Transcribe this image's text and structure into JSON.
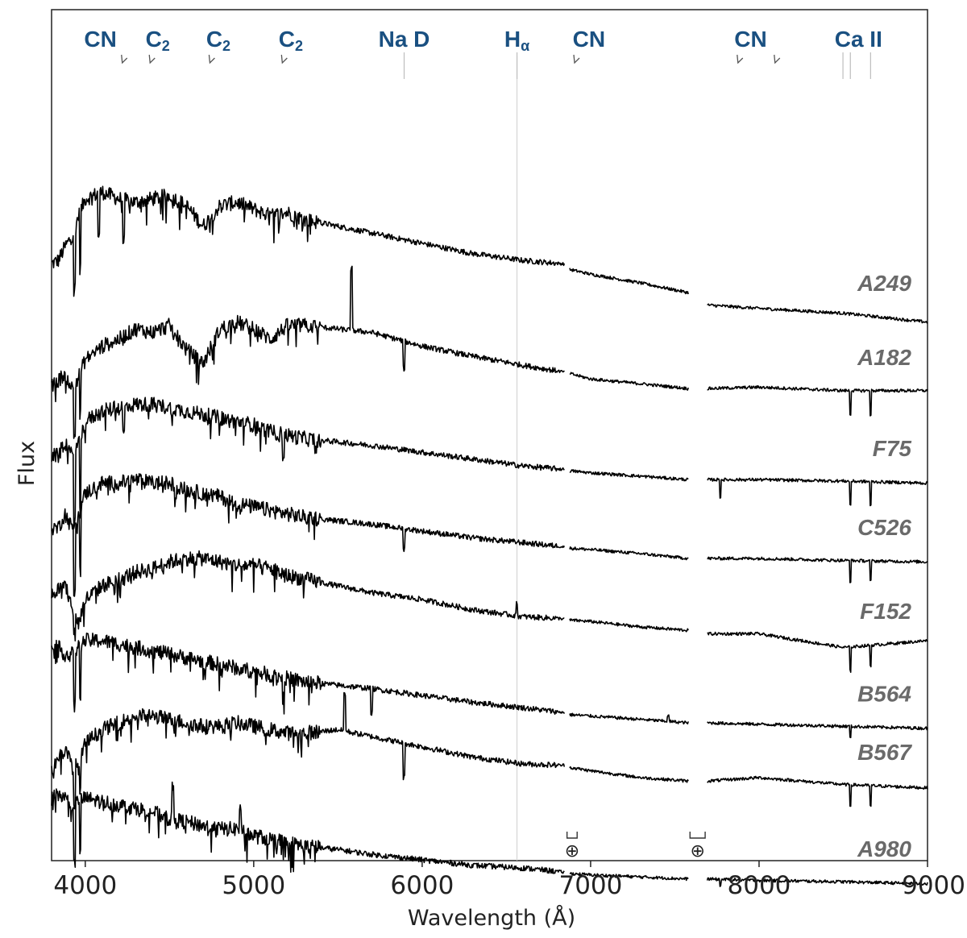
{
  "chart_data": {
    "type": "line",
    "title": "",
    "xlabel": "Wavelength (Å)",
    "ylabel": "Flux",
    "xlim": [
      3800,
      9000
    ],
    "x_ticks": [
      4000,
      5000,
      6000,
      7000,
      8000,
      9000
    ],
    "y_ticks_shown": false,
    "grid": false,
    "gaps": [
      [
        6845,
        6875
      ],
      [
        7580,
        7690
      ]
    ],
    "halpha_marker": 6563,
    "telluric_symbol": "⊕",
    "telluric_bands": [
      [
        6860,
        6920
      ],
      [
        7590,
        7680
      ]
    ],
    "line_labels": [
      {
        "text": "CN",
        "x": 4090,
        "kind": "tick",
        "ticks": [
          4215
        ]
      },
      {
        "text": "C",
        "sub": "2",
        "x": 4430,
        "kind": "tick",
        "ticks": [
          4380
        ]
      },
      {
        "text": "C",
        "sub": "2",
        "x": 4790,
        "kind": "tick",
        "ticks": [
          4735
        ]
      },
      {
        "text": "C",
        "sub": "2",
        "x": 5220,
        "kind": "tick",
        "ticks": [
          5165
        ]
      },
      {
        "text": "Na D",
        "x": 5893,
        "kind": "line",
        "ticks": [
          5893
        ]
      },
      {
        "text": "H",
        "sub": "α",
        "x": 6563,
        "kind": "line",
        "ticks": [
          6563
        ]
      },
      {
        "text": "CN",
        "x": 6990,
        "kind": "tick",
        "ticks": [
          6900
        ]
      },
      {
        "text": "CN",
        "x": 7950,
        "kind": "tick",
        "ticks": [
          7870,
          8090
        ]
      },
      {
        "text": "Ca II",
        "x": 8590,
        "kind": "line",
        "ticks": [
          8498,
          8542,
          8662
        ]
      }
    ],
    "series": [
      {
        "name": "A249",
        "offset": 8.0,
        "x": [
          3800,
          3840,
          3880,
          3920,
          3960,
          4000,
          4100,
          4200,
          4300,
          4400,
          4500,
          4600,
          4700,
          4800,
          4900,
          5000,
          5100,
          5200,
          5300,
          5500,
          5700,
          6000,
          6300,
          6600,
          6845,
          6875,
          7000,
          7300,
          7580,
          7690,
          8000,
          8500,
          9000
        ],
        "y": [
          0.5,
          0.55,
          0.75,
          0.9,
          1.2,
          1.45,
          1.55,
          1.45,
          1.4,
          1.45,
          1.5,
          1.35,
          1.05,
          1.35,
          1.4,
          1.3,
          1.2,
          1.25,
          1.15,
          1.05,
          0.95,
          0.8,
          0.65,
          0.55,
          0.5,
          0.42,
          0.35,
          0.22,
          0.08,
          -0.1,
          -0.15,
          -0.22,
          -0.35
        ],
        "absorptions": [
          [
            3935,
            -0.9
          ],
          [
            3970,
            -0.8
          ],
          [
            4080,
            -0.6
          ],
          [
            4227,
            -0.6
          ]
        ],
        "emissions": []
      },
      {
        "name": "A182",
        "offset": 6.8,
        "x": [
          3800,
          3840,
          3880,
          3920,
          3960,
          4000,
          4100,
          4200,
          4300,
          4400,
          4500,
          4600,
          4700,
          4800,
          4900,
          5000,
          5100,
          5200,
          5300,
          5500,
          5700,
          6000,
          6300,
          6600,
          6845,
          6875,
          7000,
          7300,
          7580,
          7690,
          8000,
          8500,
          9000
        ],
        "y": [
          -0.1,
          0.0,
          0.1,
          -0.1,
          0.05,
          0.3,
          0.5,
          0.6,
          0.75,
          0.7,
          0.8,
          0.45,
          0.25,
          0.75,
          0.85,
          0.75,
          0.6,
          0.8,
          0.8,
          0.75,
          0.7,
          0.5,
          0.35,
          0.22,
          0.12,
          0.1,
          0.02,
          -0.05,
          -0.12,
          -0.12,
          -0.1,
          -0.15,
          -0.15
        ],
        "absorptions": [
          [
            3935,
            -0.7
          ],
          [
            3970,
            -0.6
          ],
          [
            5893,
            -0.4
          ],
          [
            8542,
            -0.35
          ],
          [
            8662,
            -0.35
          ]
        ],
        "emissions": [
          [
            5580,
            0.9
          ]
        ]
      },
      {
        "name": "F75",
        "offset": 5.6,
        "x": [
          3800,
          3840,
          3880,
          3920,
          3960,
          4000,
          4100,
          4200,
          4300,
          4400,
          4500,
          4600,
          4700,
          4800,
          4900,
          5000,
          5100,
          5200,
          5300,
          5500,
          5700,
          6000,
          6300,
          6600,
          6845,
          6875,
          7000,
          7300,
          7580,
          7690,
          8000,
          8500,
          9000
        ],
        "y": [
          0.1,
          0.1,
          0.3,
          0.1,
          0.25,
          0.6,
          0.75,
          0.8,
          0.85,
          0.85,
          0.8,
          0.75,
          0.7,
          0.65,
          0.6,
          0.55,
          0.45,
          0.4,
          0.35,
          0.3,
          0.25,
          0.15,
          0.05,
          -0.05,
          -0.1,
          -0.12,
          -0.15,
          -0.2,
          -0.25,
          -0.25,
          -0.25,
          -0.27,
          -0.3
        ],
        "absorptions": [
          [
            3935,
            -1.0
          ],
          [
            3970,
            -0.9
          ],
          [
            4227,
            -0.4
          ],
          [
            5176,
            -0.3
          ],
          [
            7770,
            -0.25
          ],
          [
            8542,
            -0.35
          ],
          [
            8662,
            -0.35
          ]
        ],
        "emissions": []
      },
      {
        "name": "C526",
        "offset": 4.55,
        "x": [
          3800,
          3840,
          3880,
          3920,
          3960,
          4000,
          4100,
          4200,
          4300,
          4400,
          4500,
          4600,
          4700,
          4800,
          4900,
          5000,
          5100,
          5200,
          5300,
          5500,
          5700,
          6000,
          6300,
          6600,
          6845,
          6875,
          7000,
          7300,
          7580,
          7690,
          8000,
          8500,
          9000
        ],
        "y": [
          0.1,
          0.1,
          0.3,
          0.1,
          0.3,
          0.6,
          0.75,
          0.75,
          0.8,
          0.75,
          0.75,
          0.65,
          0.6,
          0.55,
          0.45,
          0.4,
          0.35,
          0.3,
          0.25,
          0.2,
          0.15,
          0.05,
          -0.05,
          -0.12,
          -0.18,
          -0.2,
          -0.22,
          -0.28,
          -0.35,
          -0.35,
          -0.35,
          -0.38,
          -0.4
        ],
        "absorptions": [
          [
            3935,
            -1.0
          ],
          [
            3970,
            -0.9
          ],
          [
            5893,
            -0.3
          ],
          [
            8542,
            -0.3
          ],
          [
            8662,
            -0.3
          ]
        ],
        "emissions": []
      },
      {
        "name": "F152",
        "offset": 3.5,
        "x": [
          3800,
          3840,
          3880,
          3920,
          3960,
          4000,
          4100,
          4200,
          4300,
          4400,
          4500,
          4600,
          4700,
          4800,
          4900,
          5000,
          5100,
          5200,
          5300,
          5500,
          5700,
          6000,
          6300,
          6600,
          6845,
          6875,
          7000,
          7300,
          7580,
          7690,
          8000,
          8500,
          9000
        ],
        "y": [
          0.2,
          0.25,
          0.3,
          0.0,
          -0.25,
          0.1,
          0.3,
          0.4,
          0.5,
          0.55,
          0.65,
          0.7,
          0.7,
          0.65,
          0.6,
          0.6,
          0.55,
          0.45,
          0.4,
          0.3,
          0.2,
          0.1,
          -0.05,
          -0.15,
          -0.18,
          -0.2,
          -0.22,
          -0.3,
          -0.35,
          -0.4,
          -0.4,
          -0.6,
          -0.5
        ],
        "absorptions": [
          [
            3935,
            -0.3
          ],
          [
            8542,
            -0.35
          ],
          [
            8662,
            -0.3
          ]
        ],
        "emissions": [
          [
            6563,
            0.2
          ]
        ]
      },
      {
        "name": "B564",
        "offset": 2.4,
        "x": [
          3800,
          3840,
          3880,
          3920,
          3960,
          4000,
          4100,
          4200,
          4300,
          4400,
          4500,
          4600,
          4700,
          4800,
          4900,
          5000,
          5100,
          5200,
          5300,
          5500,
          5700,
          6000,
          6300,
          6600,
          6845,
          6875,
          7000,
          7300,
          7580,
          7690,
          8000,
          8500,
          9000
        ],
        "y": [
          0.6,
          0.5,
          0.4,
          0.4,
          0.5,
          0.6,
          0.6,
          0.55,
          0.5,
          0.45,
          0.4,
          0.35,
          0.3,
          0.25,
          0.2,
          0.15,
          0.1,
          0.05,
          0.0,
          -0.05,
          -0.1,
          -0.2,
          -0.3,
          -0.38,
          -0.45,
          -0.48,
          -0.5,
          -0.55,
          -0.6,
          -0.6,
          -0.62,
          -0.65,
          -0.68
        ],
        "absorptions": [
          [
            3935,
            -0.8
          ],
          [
            3970,
            -0.7
          ],
          [
            5176,
            -0.3
          ],
          [
            5700,
            -0.35
          ],
          [
            8542,
            -0.15
          ]
        ],
        "emissions": [
          [
            7460,
            0.08
          ]
        ]
      },
      {
        "name": "B567",
        "offset": 1.3,
        "x": [
          3800,
          3840,
          3880,
          3920,
          3960,
          4000,
          4100,
          4200,
          4300,
          4400,
          4500,
          4600,
          4700,
          4800,
          4900,
          5000,
          5100,
          5200,
          5300,
          5500,
          5700,
          6000,
          6300,
          6600,
          6845,
          6875,
          7000,
          7300,
          7580,
          7690,
          8000,
          8500,
          9000
        ],
        "y": [
          -0.2,
          0.0,
          0.1,
          -0.1,
          -0.15,
          0.2,
          0.4,
          0.5,
          0.6,
          0.6,
          0.55,
          0.5,
          0.45,
          0.45,
          0.5,
          0.45,
          0.4,
          0.35,
          0.35,
          0.4,
          0.3,
          0.15,
          0.0,
          -0.1,
          -0.12,
          -0.15,
          -0.2,
          -0.3,
          -0.35,
          -0.35,
          -0.3,
          -0.4,
          -0.45
        ],
        "absorptions": [
          [
            3935,
            -0.6
          ],
          [
            3970,
            -0.5
          ],
          [
            5893,
            -0.5
          ],
          [
            8542,
            -0.3
          ],
          [
            8662,
            -0.3
          ]
        ],
        "emissions": [
          [
            5540,
            0.55
          ]
        ]
      },
      {
        "name": "A980",
        "offset": 0.3,
        "x": [
          3800,
          3840,
          3880,
          3920,
          3960,
          4000,
          4100,
          4200,
          4300,
          4400,
          4500,
          4600,
          4700,
          4800,
          4900,
          5000,
          5100,
          5200,
          5300,
          5500,
          5700,
          6000,
          6300,
          6600,
          6845,
          6875,
          7000,
          7300,
          7580,
          7690,
          8000,
          8500,
          9000
        ],
        "y": [
          0.4,
          0.45,
          0.4,
          0.3,
          0.35,
          0.4,
          0.35,
          0.3,
          0.25,
          0.2,
          0.1,
          0.05,
          0.0,
          -0.05,
          -0.05,
          -0.15,
          -0.2,
          -0.25,
          -0.3,
          -0.35,
          -0.42,
          -0.5,
          -0.58,
          -0.62,
          -0.68,
          -0.7,
          -0.72,
          -0.75,
          -0.78,
          -0.78,
          -0.8,
          -0.82,
          -0.85
        ],
        "absorptions": [
          [
            3935,
            -0.8
          ],
          [
            3970,
            -0.7
          ],
          [
            7770,
            -0.1
          ]
        ],
        "emissions": [
          [
            4520,
            0.5
          ],
          [
            4920,
            0.35
          ]
        ]
      }
    ]
  }
}
